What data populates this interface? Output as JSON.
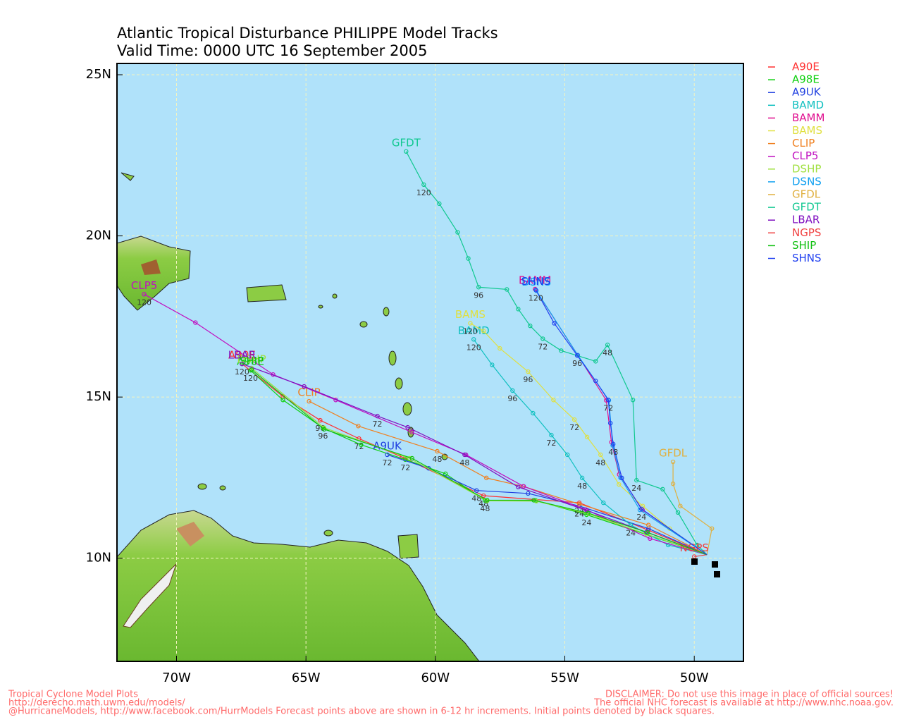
{
  "title": [
    "Atlantic Tropical Disturbance PHILIPPE Model Tracks",
    "Valid Time: 0000 UTC 16 September 2005"
  ],
  "map": {
    "lonlim": [
      -72.3,
      -48.1
    ],
    "latlim": [
      6.8,
      25.35
    ],
    "lonticks": [
      {
        "value": -70,
        "label": "70W"
      },
      {
        "value": -65,
        "label": "65W"
      },
      {
        "value": -60,
        "label": "60W"
      },
      {
        "value": -55,
        "label": "55W"
      },
      {
        "value": -50,
        "label": "50W"
      }
    ],
    "latticks": [
      {
        "value": 10,
        "label": "10N"
      },
      {
        "value": 15,
        "label": "15N"
      },
      {
        "value": 20,
        "label": "20N"
      },
      {
        "value": 25,
        "label": "25N"
      }
    ],
    "grid": true
  },
  "models": [
    {
      "name": "A90E",
      "color": "#ff3030",
      "points": [
        {
          "lon": -49.51,
          "lat": 10.11
        },
        {
          "lon": -51.77,
          "lat": 10.87
        },
        {
          "lon": -54.44,
          "lat": 11.72,
          "hour": "24"
        },
        {
          "lon": -58.14,
          "lat": 11.94,
          "hour": "48"
        },
        {
          "lon": -61.29,
          "lat": 13.14
        },
        {
          "lon": -62.95,
          "lat": 13.71,
          "hour": "72"
        },
        {
          "lon": -64.45,
          "lat": 14.28,
          "hour": "96"
        },
        {
          "lon": -65.89,
          "lat": 15.02
        },
        {
          "lon": -67.47,
          "lat": 16.03,
          "hour": "120"
        }
      ]
    },
    {
      "name": "A98E",
      "color": "#10d010",
      "points": [
        {
          "lon": -49.51,
          "lat": 10.11
        },
        {
          "lon": -54.16,
          "lat": 11.35,
          "hour": "24"
        },
        {
          "lon": -56.12,
          "lat": 11.79
        },
        {
          "lon": -58.08,
          "lat": 11.79,
          "hour": "48"
        },
        {
          "lon": -59.61,
          "lat": 12.62
        },
        {
          "lon": -61.16,
          "lat": 13.06,
          "hour": "72"
        },
        {
          "lon": -62.87,
          "lat": 13.52
        },
        {
          "lon": -64.34,
          "lat": 14.04,
          "hour": "96"
        },
        {
          "lon": -65.89,
          "lat": 14.91
        },
        {
          "lon": -67.14,
          "lat": 15.83,
          "hour": "120"
        }
      ]
    },
    {
      "name": "A9UK",
      "color": "#2040e0",
      "points": [
        {
          "lon": -49.51,
          "lat": 10.11
        },
        {
          "lon": -51.77,
          "lat": 10.92
        },
        {
          "lon": -54.44,
          "lat": 11.62,
          "hour": "24"
        },
        {
          "lon": -56.42,
          "lat": 12.01
        },
        {
          "lon": -58.41,
          "lat": 12.1,
          "hour": "48"
        },
        {
          "lon": -60.26,
          "lat": 12.79
        },
        {
          "lon": -61.86,
          "lat": 13.21,
          "hour": "72"
        }
      ]
    },
    {
      "name": "BAMD",
      "color": "#10c0c0",
      "points": [
        {
          "lon": -49.51,
          "lat": 10.11
        },
        {
          "lon": -51.01,
          "lat": 10.41
        },
        {
          "lon": -52.45,
          "lat": 11.03,
          "hour": "24"
        },
        {
          "lon": -53.51,
          "lat": 11.72
        },
        {
          "lon": -54.33,
          "lat": 12.49,
          "hour": "48"
        },
        {
          "lon": -54.9,
          "lat": 13.21
        },
        {
          "lon": -55.52,
          "lat": 13.82,
          "hour": "72"
        },
        {
          "lon": -56.23,
          "lat": 14.5
        },
        {
          "lon": -57.02,
          "lat": 15.2,
          "hour": "96"
        },
        {
          "lon": -57.81,
          "lat": 16.0
        },
        {
          "lon": -58.52,
          "lat": 16.79,
          "hour": "120"
        }
      ]
    },
    {
      "name": "BAMM",
      "color": "#e01090",
      "points": [
        {
          "lon": -49.51,
          "lat": 10.11
        },
        {
          "lon": -52.0,
          "lat": 11.5
        },
        {
          "lon": -52.9,
          "lat": 12.6
        },
        {
          "lon": -53.2,
          "lat": 13.6
        },
        {
          "lon": -53.4,
          "lat": 14.9
        },
        {
          "lon": -54.5,
          "lat": 16.3
        },
        {
          "lon": -56.15,
          "lat": 18.35
        }
      ]
    },
    {
      "name": "BAMS",
      "color": "#e0e040",
      "points": [
        {
          "lon": -49.51,
          "lat": 10.11
        },
        {
          "lon": -50.95,
          "lat": 10.92
        },
        {
          "lon": -51.99,
          "lat": 11.62
        },
        {
          "lon": -52.91,
          "lat": 12.29
        },
        {
          "lon": -53.62,
          "lat": 13.21,
          "hour": "48"
        },
        {
          "lon": -54.14,
          "lat": 13.76
        },
        {
          "lon": -54.63,
          "lat": 14.3,
          "hour": "72"
        },
        {
          "lon": -55.44,
          "lat": 14.91
        },
        {
          "lon": -56.42,
          "lat": 15.79,
          "hour": "96"
        },
        {
          "lon": -57.51,
          "lat": 16.51
        },
        {
          "lon": -58.14,
          "lat": 17.05
        },
        {
          "lon": -58.65,
          "lat": 17.29,
          "hour": "120"
        }
      ]
    },
    {
      "name": "CLIP",
      "color": "#f08020",
      "points": [
        {
          "lon": -49.51,
          "lat": 10.11
        },
        {
          "lon": -51.77,
          "lat": 11.03
        },
        {
          "lon": -54.44,
          "lat": 11.68
        },
        {
          "lon": -56.61,
          "lat": 12.23
        },
        {
          "lon": -58.03,
          "lat": 12.49
        },
        {
          "lon": -59.93,
          "lat": 13.32,
          "hour": "48"
        },
        {
          "lon": -62.98,
          "lat": 14.1
        },
        {
          "lon": -64.88,
          "lat": 14.87
        }
      ]
    },
    {
      "name": "CLP5",
      "color": "#c010c0",
      "points": [
        {
          "lon": -49.51,
          "lat": 10.11
        },
        {
          "lon": -51.71,
          "lat": 10.61
        },
        {
          "lon": -54.19,
          "lat": 11.51
        },
        {
          "lon": -56.59,
          "lat": 12.23
        },
        {
          "lon": -58.82,
          "lat": 13.21
        },
        {
          "lon": -60.91,
          "lat": 13.91
        },
        {
          "lon": -63.85,
          "lat": 14.91
        },
        {
          "lon": -66.27,
          "lat": 15.7
        },
        {
          "lon": -69.27,
          "lat": 17.31
        },
        {
          "lon": -71.25,
          "lat": 18.19,
          "hour": "120"
        }
      ]
    },
    {
      "name": "DSHP",
      "color": "#a0e040",
      "points": [
        {
          "lon": -49.51,
          "lat": 10.11
        },
        {
          "lon": -51.85,
          "lat": 10.75
        },
        {
          "lon": -54.1,
          "lat": 11.38
        },
        {
          "lon": -56.1,
          "lat": 11.77
        },
        {
          "lon": -58.0,
          "lat": 11.78
        },
        {
          "lon": -61.0,
          "lat": 13.1
        },
        {
          "lon": -64.3,
          "lat": 14.05
        },
        {
          "lon": -67.1,
          "lat": 15.9
        }
      ]
    },
    {
      "name": "DSNS",
      "color": "#10a0f0",
      "points": [
        {
          "lon": -49.51,
          "lat": 10.11
        },
        {
          "lon": -52.1,
          "lat": 11.5
        },
        {
          "lon": -52.85,
          "lat": 12.5
        },
        {
          "lon": -53.15,
          "lat": 13.5
        },
        {
          "lon": -53.3,
          "lat": 14.9
        },
        {
          "lon": -54.5,
          "lat": 16.3
        },
        {
          "lon": -56.1,
          "lat": 18.3
        }
      ]
    },
    {
      "name": "GFDL",
      "color": "#e0b040",
      "points": [
        {
          "lon": -49.51,
          "lat": 10.11
        },
        {
          "lon": -49.32,
          "lat": 10.92
        },
        {
          "lon": -50.54,
          "lat": 11.62
        },
        {
          "lon": -50.82,
          "lat": 12.31
        },
        {
          "lon": -50.82,
          "lat": 12.99
        }
      ]
    },
    {
      "name": "GFDT",
      "color": "#10c890",
      "points": [
        {
          "lon": -49.51,
          "lat": 10.11
        },
        {
          "lon": -49.89,
          "lat": 10.41
        },
        {
          "lon": -50.63,
          "lat": 11.42
        },
        {
          "lon": -51.22,
          "lat": 12.14
        },
        {
          "lon": -52.23,
          "lat": 12.42,
          "hour": "24"
        },
        {
          "lon": -52.37,
          "lat": 14.91
        },
        {
          "lon": -53.35,
          "lat": 16.62,
          "hour": "48"
        },
        {
          "lon": -53.81,
          "lat": 16.11
        },
        {
          "lon": -55.14,
          "lat": 16.44
        },
        {
          "lon": -55.85,
          "lat": 16.81,
          "hour": "72"
        },
        {
          "lon": -56.34,
          "lat": 17.21
        },
        {
          "lon": -56.8,
          "lat": 17.73
        },
        {
          "lon": -57.24,
          "lat": 18.34
        },
        {
          "lon": -58.33,
          "lat": 18.41,
          "hour": "96"
        },
        {
          "lon": -58.73,
          "lat": 19.3
        },
        {
          "lon": -59.14,
          "lat": 20.11
        },
        {
          "lon": -59.85,
          "lat": 21.0
        },
        {
          "lon": -60.45,
          "lat": 21.59,
          "hour": "120"
        },
        {
          "lon": -61.13,
          "lat": 22.62
        }
      ]
    },
    {
      "name": "LBAR",
      "color": "#8010c0",
      "points": [
        {
          "lon": -49.51,
          "lat": 10.11
        },
        {
          "lon": -51.85,
          "lat": 10.81
        },
        {
          "lon": -54.14,
          "lat": 11.48
        },
        {
          "lon": -56.8,
          "lat": 12.21
        },
        {
          "lon": -58.87,
          "lat": 13.21,
          "hour": "48"
        },
        {
          "lon": -61.07,
          "lat": 14.06
        },
        {
          "lon": -62.24,
          "lat": 14.41,
          "hour": "72"
        },
        {
          "lon": -65.07,
          "lat": 15.33
        },
        {
          "lon": -67.47,
          "lat": 16.03
        }
      ]
    },
    {
      "name": "NGPS",
      "color": "#f04040",
      "points": [
        {
          "lon": -49.51,
          "lat": 10.11
        },
        {
          "lon": -50.0,
          "lat": 10.05
        }
      ]
    },
    {
      "name": "SHIP",
      "color": "#10c010",
      "points": [
        {
          "lon": -49.51,
          "lat": 10.11
        },
        {
          "lon": -51.8,
          "lat": 10.8
        },
        {
          "lon": -54.1,
          "lat": 11.4
        },
        {
          "lon": -56.2,
          "lat": 11.8
        },
        {
          "lon": -58.0,
          "lat": 11.8
        },
        {
          "lon": -60.9,
          "lat": 13.1
        },
        {
          "lon": -64.3,
          "lat": 14.0
        },
        {
          "lon": -67.1,
          "lat": 15.85
        }
      ]
    },
    {
      "name": "SHNS",
      "color": "#2040f0",
      "points": [
        {
          "lon": -49.51,
          "lat": 10.11
        },
        {
          "lon": -52.04,
          "lat": 11.53,
          "hour": "24"
        },
        {
          "lon": -52.8,
          "lat": 12.49
        },
        {
          "lon": -53.13,
          "lat": 13.54,
          "hour": "48"
        },
        {
          "lon": -53.24,
          "lat": 14.19
        },
        {
          "lon": -53.32,
          "lat": 14.91,
          "hour": "72"
        },
        {
          "lon": -53.81,
          "lat": 15.5
        },
        {
          "lon": -54.52,
          "lat": 16.29,
          "hour": "96"
        },
        {
          "lon": -55.41,
          "lat": 17.29
        },
        {
          "lon": -56.12,
          "lat": 18.32,
          "hour": "120"
        }
      ]
    }
  ],
  "footer_left": [
    "Tropical Cyclone Model Plots",
    "http://derecho.math.uwm.edu/models/",
    "@HurricaneModels, http://www.facebook.com/HurrModels  Forecast points above are shown in 6-12 hr increments.  Initial points denoted by black squares."
  ],
  "footer_right": [
    "DISCLAIMER: Do not use this image in place of official sources!",
    "The official NHC forecast is available at http://www.nhc.noaa.gov."
  ]
}
